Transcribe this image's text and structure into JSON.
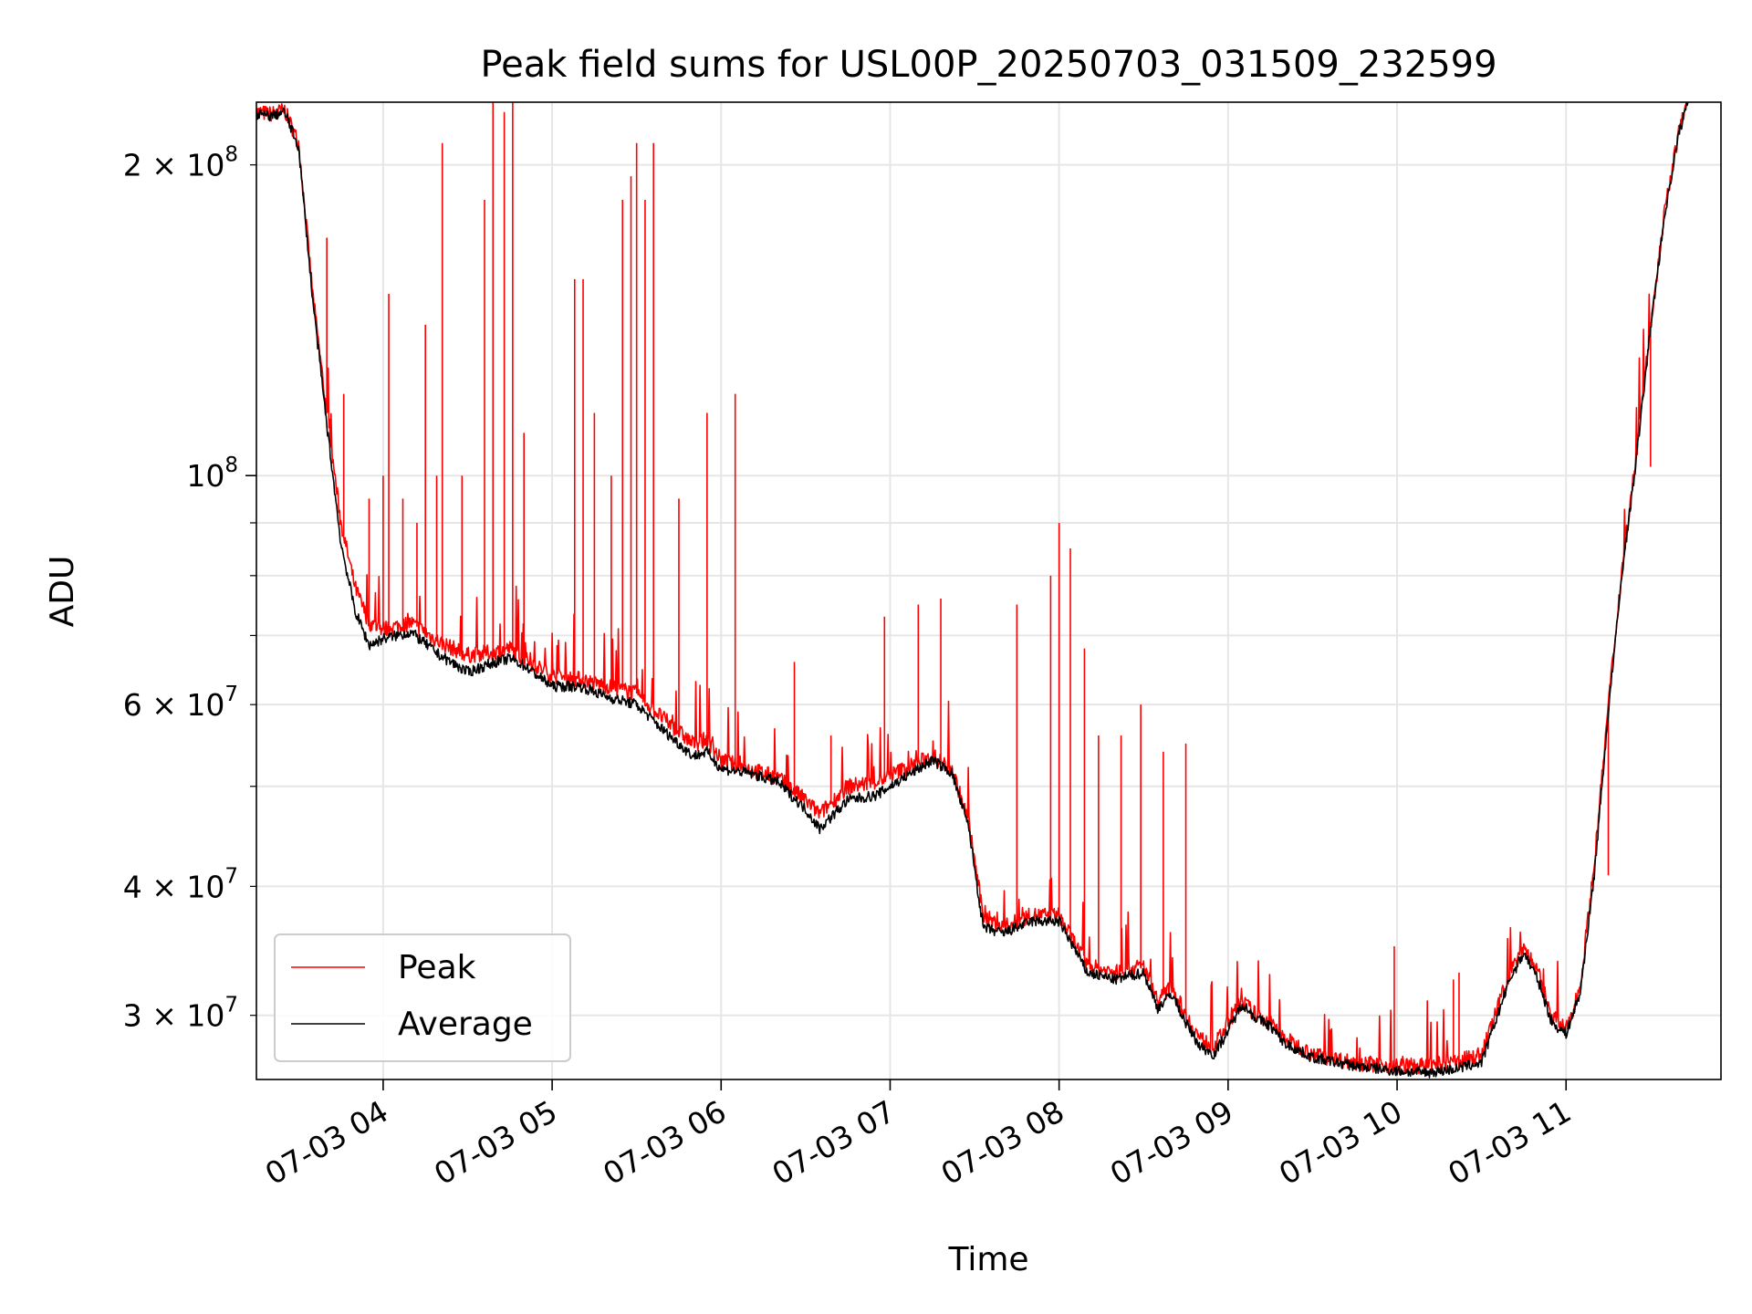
{
  "chart_data": {
    "type": "line",
    "title": "Peak field sums for USL00P_20250703_031509_232599",
    "xlabel": "Time",
    "ylabel": "ADU",
    "y_scale": "log",
    "xlim": [
      "2025-07-03 03:15",
      "2025-07-03 11:55"
    ],
    "ylim": [
      26000000,
      230000000
    ],
    "x_ticks": [
      {
        "value": "2025-07-03 04:00",
        "label": "07-03 04"
      },
      {
        "value": "2025-07-03 05:00",
        "label": "07-03 05"
      },
      {
        "value": "2025-07-03 06:00",
        "label": "07-03 06"
      },
      {
        "value": "2025-07-03 07:00",
        "label": "07-03 07"
      },
      {
        "value": "2025-07-03 08:00",
        "label": "07-03 08"
      },
      {
        "value": "2025-07-03 09:00",
        "label": "07-03 09"
      },
      {
        "value": "2025-07-03 10:00",
        "label": "07-03 10"
      },
      {
        "value": "2025-07-03 11:00",
        "label": "07-03 11"
      }
    ],
    "y_major_ticks": [
      {
        "value": 100000000,
        "base": "10",
        "exp": "8"
      }
    ],
    "y_minor_ticks": [
      {
        "value": 30000000,
        "mant": "3",
        "exp": "7"
      },
      {
        "value": 40000000,
        "mant": "4",
        "exp": "7"
      },
      {
        "value": 60000000,
        "mant": "6",
        "exp": "7"
      },
      {
        "value": 200000000,
        "mant": "2",
        "exp": "8"
      }
    ],
    "y_unlabeled_minor_ticks": [
      50000000,
      70000000,
      80000000,
      90000000
    ],
    "grid": true,
    "legend_position": "lower-left",
    "series": [
      {
        "name": "Peak",
        "color": "#ff0000",
        "baseline": [
          [
            "2025-07-03 03:15",
            225000000
          ],
          [
            "2025-07-03 03:20",
            224000000
          ],
          [
            "2025-07-03 03:25",
            226000000
          ],
          [
            "2025-07-03 03:30",
            210000000
          ],
          [
            "2025-07-03 03:35",
            150000000
          ],
          [
            "2025-07-03 03:40",
            115000000
          ],
          [
            "2025-07-03 03:45",
            90000000
          ],
          [
            "2025-07-03 03:50",
            78000000
          ],
          [
            "2025-07-03 03:55",
            72000000
          ],
          [
            "2025-07-03 04:00",
            71000000
          ],
          [
            "2025-07-03 04:10",
            72000000
          ],
          [
            "2025-07-03 04:20",
            69000000
          ],
          [
            "2025-07-03 04:30",
            67000000
          ],
          [
            "2025-07-03 04:40",
            67500000
          ],
          [
            "2025-07-03 04:45",
            68000000
          ],
          [
            "2025-07-03 04:50",
            66500000
          ],
          [
            "2025-07-03 05:00",
            64000000
          ],
          [
            "2025-07-03 05:10",
            63500000
          ],
          [
            "2025-07-03 05:20",
            62500000
          ],
          [
            "2025-07-03 05:30",
            61500000
          ],
          [
            "2025-07-03 05:40",
            58000000
          ],
          [
            "2025-07-03 05:50",
            55000000
          ],
          [
            "2025-07-03 05:55",
            55500000
          ],
          [
            "2025-07-03 06:00",
            53000000
          ],
          [
            "2025-07-03 06:10",
            52000000
          ],
          [
            "2025-07-03 06:20",
            51000000
          ],
          [
            "2025-07-03 06:30",
            48500000
          ],
          [
            "2025-07-03 06:35",
            47000000
          ],
          [
            "2025-07-03 06:45",
            50000000
          ],
          [
            "2025-07-03 06:55",
            50500000
          ],
          [
            "2025-07-03 07:05",
            52000000
          ],
          [
            "2025-07-03 07:15",
            53500000
          ],
          [
            "2025-07-03 07:22",
            52000000
          ],
          [
            "2025-07-03 07:28",
            46000000
          ],
          [
            "2025-07-03 07:33",
            37500000
          ],
          [
            "2025-07-03 07:40",
            36500000
          ],
          [
            "2025-07-03 07:50",
            37500000
          ],
          [
            "2025-07-03 08:00",
            37500000
          ],
          [
            "2025-07-03 08:05",
            35500000
          ],
          [
            "2025-07-03 08:10",
            33500000
          ],
          [
            "2025-07-03 08:20",
            33000000
          ],
          [
            "2025-07-03 08:30",
            33500000
          ],
          [
            "2025-07-03 08:35",
            31000000
          ],
          [
            "2025-07-03 08:40",
            32000000
          ],
          [
            "2025-07-03 08:45",
            30000000
          ],
          [
            "2025-07-03 08:50",
            28500000
          ],
          [
            "2025-07-03 08:55",
            28000000
          ],
          [
            "2025-07-03 09:00",
            29500000
          ],
          [
            "2025-07-03 09:05",
            31000000
          ],
          [
            "2025-07-03 09:10",
            30000000
          ],
          [
            "2025-07-03 09:15",
            29500000
          ],
          [
            "2025-07-03 09:20",
            28500000
          ],
          [
            "2025-07-03 09:30",
            27500000
          ],
          [
            "2025-07-03 09:45",
            27000000
          ],
          [
            "2025-07-03 10:00",
            26800000
          ],
          [
            "2025-07-03 10:10",
            26800000
          ],
          [
            "2025-07-03 10:20",
            27000000
          ],
          [
            "2025-07-03 10:30",
            27500000
          ],
          [
            "2025-07-03 10:40",
            33000000
          ],
          [
            "2025-07-03 10:45",
            35000000
          ],
          [
            "2025-07-03 10:50",
            33000000
          ],
          [
            "2025-07-03 10:55",
            30000000
          ],
          [
            "2025-07-03 11:00",
            29000000
          ],
          [
            "2025-07-03 11:05",
            32000000
          ],
          [
            "2025-07-03 11:10",
            42000000
          ],
          [
            "2025-07-03 11:15",
            60000000
          ],
          [
            "2025-07-03 11:20",
            82000000
          ],
          [
            "2025-07-03 11:25",
            105000000
          ],
          [
            "2025-07-03 11:30",
            140000000
          ],
          [
            "2025-07-03 11:35",
            180000000
          ],
          [
            "2025-07-03 11:40",
            215000000
          ],
          [
            "2025-07-03 11:44",
            235000000
          ]
        ],
        "spikes": [
          [
            "2025-07-03 03:40",
            170000000
          ],
          [
            "2025-07-03 03:46",
            120000000
          ],
          [
            "2025-07-03 03:55",
            95000000
          ],
          [
            "2025-07-03 04:00",
            100000000
          ],
          [
            "2025-07-03 04:02",
            150000000
          ],
          [
            "2025-07-03 04:07",
            95000000
          ],
          [
            "2025-07-03 04:12",
            90000000
          ],
          [
            "2025-07-03 04:15",
            140000000
          ],
          [
            "2025-07-03 04:19",
            100000000
          ],
          [
            "2025-07-03 04:21",
            210000000
          ],
          [
            "2025-07-03 04:28",
            100000000
          ],
          [
            "2025-07-03 04:36",
            185000000
          ],
          [
            "2025-07-03 04:39",
            230000000
          ],
          [
            "2025-07-03 04:43",
            225000000
          ],
          [
            "2025-07-03 04:46",
            230000000
          ],
          [
            "2025-07-03 04:50",
            110000000
          ],
          [
            "2025-07-03 05:08",
            155000000
          ],
          [
            "2025-07-03 05:11",
            155000000
          ],
          [
            "2025-07-03 05:15",
            115000000
          ],
          [
            "2025-07-03 05:21",
            100000000
          ],
          [
            "2025-07-03 05:25",
            185000000
          ],
          [
            "2025-07-03 05:28",
            195000000
          ],
          [
            "2025-07-03 05:30",
            210000000
          ],
          [
            "2025-07-03 05:33",
            185000000
          ],
          [
            "2025-07-03 05:36",
            210000000
          ],
          [
            "2025-07-03 05:45",
            95000000
          ],
          [
            "2025-07-03 05:55",
            115000000
          ],
          [
            "2025-07-03 06:05",
            120000000
          ],
          [
            "2025-07-03 06:26",
            66000000
          ],
          [
            "2025-07-03 06:39",
            56000000
          ],
          [
            "2025-07-03 06:58",
            73000000
          ],
          [
            "2025-07-03 07:10",
            75000000
          ],
          [
            "2025-07-03 07:18",
            76000000
          ],
          [
            "2025-07-03 07:45",
            75000000
          ],
          [
            "2025-07-03 07:57",
            80000000
          ],
          [
            "2025-07-03 08:00",
            90000000
          ],
          [
            "2025-07-03 08:04",
            85000000
          ],
          [
            "2025-07-03 08:09",
            68000000
          ],
          [
            "2025-07-03 08:14",
            56000000
          ],
          [
            "2025-07-03 08:22",
            56000000
          ],
          [
            "2025-07-03 08:29",
            60000000
          ],
          [
            "2025-07-03 08:37",
            54000000
          ],
          [
            "2025-07-03 08:45",
            55000000
          ],
          [
            "2025-07-03 09:59",
            35000000
          ],
          [
            "2025-07-03 10:20",
            32500000
          ],
          [
            "2025-07-03 10:22",
            33000000
          ],
          [
            "2025-07-03 11:15",
            41000000
          ],
          [
            "2025-07-03 11:30",
            102000000
          ]
        ]
      },
      {
        "name": "Average",
        "color": "#000000",
        "baseline": [
          [
            "2025-07-03 03:15",
            224000000
          ],
          [
            "2025-07-03 03:20",
            223000000
          ],
          [
            "2025-07-03 03:25",
            225000000
          ],
          [
            "2025-07-03 03:30",
            208000000
          ],
          [
            "2025-07-03 03:35",
            148000000
          ],
          [
            "2025-07-03 03:40",
            112000000
          ],
          [
            "2025-07-03 03:45",
            86000000
          ],
          [
            "2025-07-03 03:50",
            74000000
          ],
          [
            "2025-07-03 03:55",
            68500000
          ],
          [
            "2025-07-03 04:00",
            69500000
          ],
          [
            "2025-07-03 04:10",
            70500000
          ],
          [
            "2025-07-03 04:20",
            67000000
          ],
          [
            "2025-07-03 04:30",
            64500000
          ],
          [
            "2025-07-03 04:40",
            66000000
          ],
          [
            "2025-07-03 04:45",
            66500000
          ],
          [
            "2025-07-03 04:50",
            65500000
          ],
          [
            "2025-07-03 05:00",
            62500000
          ],
          [
            "2025-07-03 05:10",
            62500000
          ],
          [
            "2025-07-03 05:20",
            61000000
          ],
          [
            "2025-07-03 05:30",
            60000000
          ],
          [
            "2025-07-03 05:40",
            56500000
          ],
          [
            "2025-07-03 05:50",
            53500000
          ],
          [
            "2025-07-03 05:55",
            54000000
          ],
          [
            "2025-07-03 06:00",
            52000000
          ],
          [
            "2025-07-03 06:10",
            51500000
          ],
          [
            "2025-07-03 06:20",
            50500000
          ],
          [
            "2025-07-03 06:30",
            47500000
          ],
          [
            "2025-07-03 06:35",
            45500000
          ],
          [
            "2025-07-03 06:45",
            48500000
          ],
          [
            "2025-07-03 06:55",
            49000000
          ],
          [
            "2025-07-03 07:05",
            51000000
          ],
          [
            "2025-07-03 07:15",
            53000000
          ],
          [
            "2025-07-03 07:22",
            51500000
          ],
          [
            "2025-07-03 07:28",
            45500000
          ],
          [
            "2025-07-03 07:33",
            36500000
          ],
          [
            "2025-07-03 07:40",
            36000000
          ],
          [
            "2025-07-03 07:50",
            37000000
          ],
          [
            "2025-07-03 08:00",
            37000000
          ],
          [
            "2025-07-03 08:05",
            35000000
          ],
          [
            "2025-07-03 08:10",
            33000000
          ],
          [
            "2025-07-03 08:20",
            32500000
          ],
          [
            "2025-07-03 08:30",
            33000000
          ],
          [
            "2025-07-03 08:35",
            30500000
          ],
          [
            "2025-07-03 08:40",
            31500000
          ],
          [
            "2025-07-03 08:45",
            29500000
          ],
          [
            "2025-07-03 08:50",
            28000000
          ],
          [
            "2025-07-03 08:55",
            27500000
          ],
          [
            "2025-07-03 09:00",
            29000000
          ],
          [
            "2025-07-03 09:05",
            30800000
          ],
          [
            "2025-07-03 09:10",
            29800000
          ],
          [
            "2025-07-03 09:15",
            29300000
          ],
          [
            "2025-07-03 09:20",
            28200000
          ],
          [
            "2025-07-03 09:30",
            27300000
          ],
          [
            "2025-07-03 09:45",
            26800000
          ],
          [
            "2025-07-03 10:00",
            26500000
          ],
          [
            "2025-07-03 10:10",
            26400000
          ],
          [
            "2025-07-03 10:20",
            26600000
          ],
          [
            "2025-07-03 10:30",
            27000000
          ],
          [
            "2025-07-03 10:40",
            32500000
          ],
          [
            "2025-07-03 10:45",
            34500000
          ],
          [
            "2025-07-03 10:50",
            32500000
          ],
          [
            "2025-07-03 10:55",
            29500000
          ],
          [
            "2025-07-03 11:00",
            28800000
          ],
          [
            "2025-07-03 11:05",
            31500000
          ],
          [
            "2025-07-03 11:10",
            41000000
          ],
          [
            "2025-07-03 11:15",
            59000000
          ],
          [
            "2025-07-03 11:20",
            81000000
          ],
          [
            "2025-07-03 11:25",
            104000000
          ],
          [
            "2025-07-03 11:30",
            139000000
          ],
          [
            "2025-07-03 11:35",
            179000000
          ],
          [
            "2025-07-03 11:40",
            214000000
          ],
          [
            "2025-07-03 11:44",
            235000000
          ]
        ]
      }
    ]
  }
}
